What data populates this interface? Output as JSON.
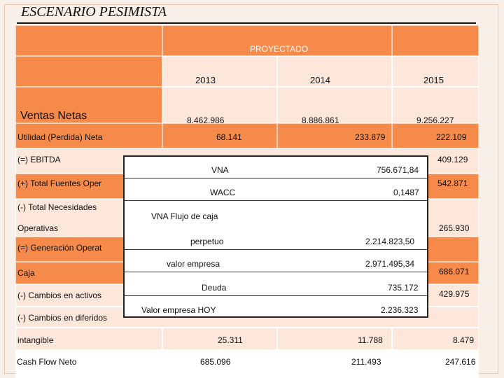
{
  "title": "ESCENARIO PESIMISTA",
  "header": {
    "proyectado": "PROYECTADO",
    "years": [
      "2013",
      "2014",
      "2015"
    ]
  },
  "rows": {
    "ventas_label": "Ventas Netas",
    "ventas": [
      "8.462.986",
      "8.886.861",
      "9.256.227"
    ],
    "utilidad_label": "Utilidad (Perdida) Neta",
    "utilidad": [
      "68.141",
      "233.879",
      "222.109"
    ],
    "ebitda_label": "(=) EBITDA",
    "ebitda_2015": "409.129",
    "fuentes_label": "(+) Total Fuentes Oper",
    "fuentes_2015": "542.871",
    "necesidades_label": "(-) Total Necesidades",
    "operativas_label": "Operativas",
    "operativas_2015": "265.930",
    "generacion_label": "(=) Generación Operat",
    "caja_label": "Caja",
    "caja_2015": "686.071",
    "activos_label": "(-) Cambios en activos",
    "activos_2015": "429.975",
    "diferidos_label": "(-) Cambios en diferidos",
    "intangible_label": "intangible",
    "intangible": [
      "25.311",
      "11.788",
      "8.479"
    ],
    "cashflow_label": "Cash Flow Neto",
    "cashflow": [
      "685.096",
      "211.493",
      "247.616"
    ]
  },
  "overlay": {
    "vna_label": "VNA",
    "vna_value": "756.671,84",
    "wacc_label": "WACC",
    "wacc_value": "0,1487",
    "vna_flujo_label": "VNA Flujo de caja",
    "perpetuo_label": "perpetuo",
    "perpetuo_value": "2.214.823,50",
    "valor_empresa_label": "valor empresa",
    "valor_empresa_value": "2.971.495,34",
    "deuda_label": "Deuda",
    "deuda_value": "735.172",
    "valor_hoy_label": "Valor empresa HOY",
    "valor_hoy_value": "2.236.323"
  }
}
